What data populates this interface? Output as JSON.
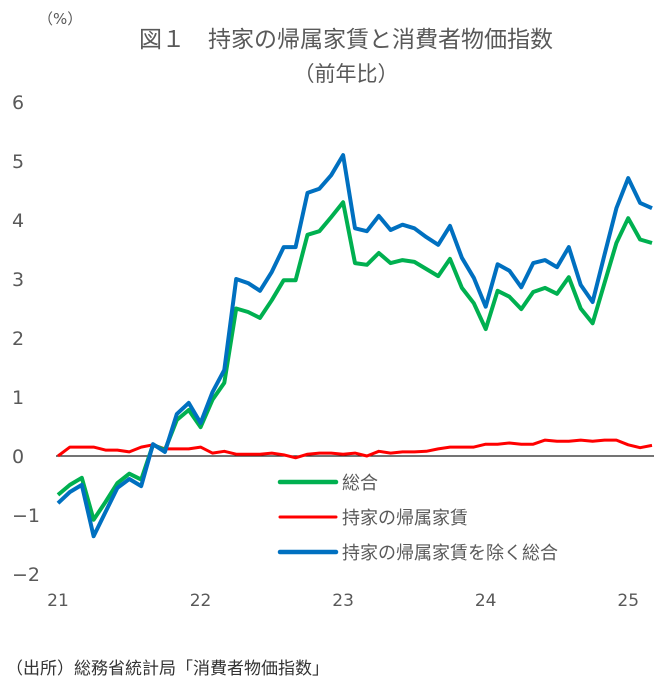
{
  "chart_data": {
    "type": "line",
    "title": "図１　持家の帰属家賃と消費者物価指数",
    "subtitle": "（前年比）",
    "ylabel": "（%）",
    "xlabel": "",
    "ylim": [
      -2,
      6
    ],
    "yticks": [
      "6",
      "5",
      "4",
      "3",
      "2",
      "1",
      "0",
      "-1",
      "-2"
    ],
    "xticks": [
      "21",
      "22",
      "23",
      "24",
      "25"
    ],
    "x_start": "2021-01",
    "x_frequency": "monthly",
    "grid": false,
    "legend_placement": "bottom-center",
    "series": [
      {
        "name": "総合",
        "color": "#00b050",
        "values": [
          -0.66,
          -0.49,
          -0.37,
          -1.08,
          -0.78,
          -0.46,
          -0.3,
          -0.4,
          0.19,
          0.1,
          0.61,
          0.78,
          0.49,
          0.95,
          1.24,
          2.5,
          2.44,
          2.34,
          2.64,
          2.98,
          2.98,
          3.75,
          3.81,
          4.05,
          4.3,
          3.27,
          3.24,
          3.44,
          3.27,
          3.32,
          3.29,
          3.17,
          3.05,
          3.34,
          2.85,
          2.59,
          2.15,
          2.8,
          2.7,
          2.49,
          2.78,
          2.85,
          2.75,
          3.03,
          2.5,
          2.25,
          2.93,
          3.61,
          4.03,
          3.67,
          3.61
        ]
      },
      {
        "name": "持家の帰属家賃",
        "color": "#ff0000",
        "values": [
          0.0,
          0.15,
          0.15,
          0.15,
          0.1,
          0.1,
          0.07,
          0.15,
          0.19,
          0.12,
          0.12,
          0.12,
          0.15,
          0.05,
          0.08,
          0.03,
          0.03,
          0.03,
          0.05,
          0.02,
          -0.03,
          0.03,
          0.05,
          0.05,
          0.03,
          0.05,
          0.0,
          0.08,
          0.05,
          0.07,
          0.07,
          0.08,
          0.12,
          0.15,
          0.15,
          0.15,
          0.2,
          0.2,
          0.22,
          0.2,
          0.2,
          0.27,
          0.25,
          0.25,
          0.27,
          0.25,
          0.27,
          0.27,
          0.19,
          0.14,
          0.18
        ]
      },
      {
        "name": "持家の帰属家賃を除く総合",
        "color": "#0070c0",
        "values": [
          -0.8,
          -0.61,
          -0.49,
          -1.36,
          -0.95,
          -0.54,
          -0.39,
          -0.51,
          0.2,
          0.07,
          0.71,
          0.9,
          0.56,
          1.08,
          1.46,
          3.0,
          2.93,
          2.8,
          3.12,
          3.54,
          3.54,
          4.46,
          4.53,
          4.76,
          5.1,
          3.86,
          3.81,
          4.07,
          3.83,
          3.92,
          3.86,
          3.71,
          3.58,
          3.9,
          3.36,
          3.02,
          2.53,
          3.25,
          3.14,
          2.86,
          3.27,
          3.32,
          3.2,
          3.54,
          2.9,
          2.61,
          3.41,
          4.2,
          4.71,
          4.29,
          4.2
        ]
      }
    ]
  },
  "source": "（出所）総務省統計局「消費者物価指数」"
}
